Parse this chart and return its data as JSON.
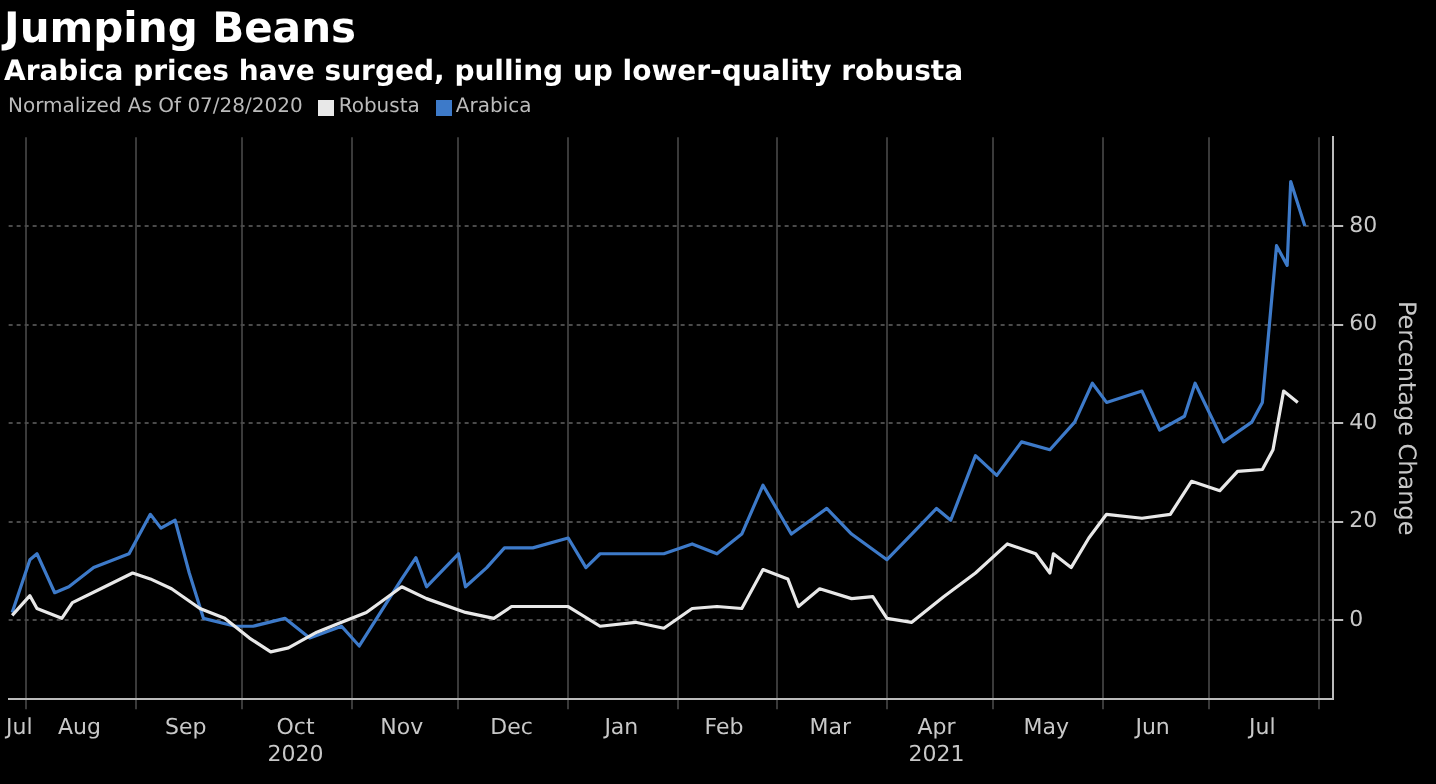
{
  "chart_data": {
    "type": "line",
    "title": "Jumping Beans",
    "subtitle": "Arabica prices have surged, pulling up lower-quality robusta",
    "legend_title": "Normalized As Of 07/28/2020",
    "ylabel": "Percentage Change",
    "legend": "top left",
    "grid": true,
    "marker": "none",
    "line_style": "solid",
    "xlim": [
      "2020-07-27",
      "2021-08-05"
    ],
    "ylim": [
      -16,
      98
    ],
    "yticks": [
      0,
      20,
      40,
      60,
      80
    ],
    "xticks": [
      {
        "value": "2020-07-30",
        "label": "Jul"
      },
      {
        "value": "2020-08-01",
        "label": null
      },
      {
        "value": "2020-08-16",
        "label": "Aug"
      },
      {
        "value": "2020-09-01",
        "label": null
      },
      {
        "value": "2020-09-15",
        "label": "Sep"
      },
      {
        "value": "2020-10-01",
        "label": null
      },
      {
        "value": "2020-10-16",
        "label": "Oct\n2020"
      },
      {
        "value": "2020-11-01",
        "label": null
      },
      {
        "value": "2020-11-15",
        "label": "Nov"
      },
      {
        "value": "2020-12-01",
        "label": null
      },
      {
        "value": "2020-12-16",
        "label": "Dec"
      },
      {
        "value": "2021-01-01",
        "label": null
      },
      {
        "value": "2021-01-16",
        "label": "Jan"
      },
      {
        "value": "2021-02-01",
        "label": null
      },
      {
        "value": "2021-02-14",
        "label": "Feb"
      },
      {
        "value": "2021-03-01",
        "label": null
      },
      {
        "value": "2021-03-16",
        "label": "Mar"
      },
      {
        "value": "2021-04-01",
        "label": null
      },
      {
        "value": "2021-04-15",
        "label": "Apr\n2021"
      },
      {
        "value": "2021-05-01",
        "label": null
      },
      {
        "value": "2021-05-16",
        "label": "May"
      },
      {
        "value": "2021-06-01",
        "label": null
      },
      {
        "value": "2021-06-15",
        "label": "Jun"
      },
      {
        "value": "2021-07-01",
        "label": null
      },
      {
        "value": "2021-07-16",
        "label": "Jul"
      },
      {
        "value": "2021-08-01",
        "label": null
      }
    ],
    "series": [
      {
        "name": "Robusta",
        "color": "#e8e8e8",
        "x": [
          "2020-07-28",
          "2020-08-02",
          "2020-08-04",
          "2020-08-11",
          "2020-08-14",
          "2020-08-22",
          "2020-08-31",
          "2020-09-05",
          "2020-09-11",
          "2020-09-19",
          "2020-09-26",
          "2020-10-03",
          "2020-10-09",
          "2020-10-14",
          "2020-10-22",
          "2020-10-29",
          "2020-11-05",
          "2020-11-15",
          "2020-11-22",
          "2020-12-03",
          "2020-12-11",
          "2020-12-16",
          "2021-01-01",
          "2021-01-10",
          "2021-01-20",
          "2021-01-28",
          "2021-02-05",
          "2021-02-12",
          "2021-02-19",
          "2021-02-25",
          "2021-03-04",
          "2021-03-07",
          "2021-03-13",
          "2021-03-22",
          "2021-03-28",
          "2021-04-01",
          "2021-04-08",
          "2021-04-17",
          "2021-04-26",
          "2021-05-05",
          "2021-05-13",
          "2021-05-17",
          "2021-05-18",
          "2021-05-23",
          "2021-05-28",
          "2021-06-02",
          "2021-06-12",
          "2021-06-20",
          "2021-06-26",
          "2021-07-04",
          "2021-07-09",
          "2021-07-16",
          "2021-07-19",
          "2021-07-22",
          "2021-07-26"
        ],
        "values": [
          1,
          5,
          2.4,
          0.4,
          3.6,
          6.4,
          9.6,
          8.4,
          6.4,
          2.4,
          0.4,
          -3.6,
          -6.4,
          -5.6,
          -2.4,
          -0.4,
          1.6,
          6.8,
          4.4,
          1.6,
          0.4,
          2.8,
          2.8,
          -1.2,
          -0.4,
          -1.6,
          2.4,
          2.8,
          2.4,
          10.3,
          8.4,
          2.8,
          6.4,
          4.4,
          4.8,
          0.4,
          -0.4,
          4.8,
          9.6,
          15.5,
          13.5,
          9.6,
          13.5,
          10.7,
          16.7,
          21.5,
          20.7,
          21.5,
          28.2,
          26.3,
          30.2,
          30.6,
          34.6,
          46.5,
          44.2
        ]
      },
      {
        "name": "Arabica",
        "color": "#3d7ac9",
        "x": [
          "2020-07-28",
          "2020-08-02",
          "2020-08-04",
          "2020-08-09",
          "2020-08-13",
          "2020-08-20",
          "2020-08-30",
          "2020-09-05",
          "2020-09-08",
          "2020-09-12",
          "2020-09-16",
          "2020-09-20",
          "2020-09-29",
          "2020-10-04",
          "2020-10-13",
          "2020-10-20",
          "2020-10-29",
          "2020-11-03",
          "2020-11-09",
          "2020-11-15",
          "2020-11-19",
          "2020-11-22",
          "2020-12-01",
          "2020-12-03",
          "2020-12-09",
          "2020-12-14",
          "2020-12-22",
          "2021-01-01",
          "2021-01-06",
          "2021-01-10",
          "2021-01-20",
          "2021-01-28",
          "2021-02-05",
          "2021-02-12",
          "2021-02-19",
          "2021-02-25",
          "2021-03-05",
          "2021-03-15",
          "2021-03-22",
          "2021-04-01",
          "2021-04-08",
          "2021-04-15",
          "2021-04-19",
          "2021-04-26",
          "2021-05-02",
          "2021-05-09",
          "2021-05-17",
          "2021-05-24",
          "2021-05-29",
          "2021-06-02",
          "2021-06-12",
          "2021-06-17",
          "2021-06-24",
          "2021-06-27",
          "2021-07-05",
          "2021-07-13",
          "2021-07-16",
          "2021-07-20",
          "2021-07-23",
          "2021-07-24",
          "2021-07-28"
        ],
        "values": [
          1.6,
          12.3,
          13.5,
          5.6,
          6.8,
          10.7,
          13.5,
          21.5,
          18.7,
          20.3,
          9.6,
          0.4,
          -1.2,
          -1.2,
          0.4,
          -3.6,
          -1.2,
          -5.2,
          1.6,
          8.4,
          12.7,
          6.8,
          13.5,
          6.8,
          10.7,
          14.7,
          14.7,
          16.7,
          10.7,
          13.5,
          13.5,
          13.5,
          15.5,
          13.5,
          17.5,
          27.4,
          17.5,
          22.7,
          17.5,
          12.3,
          17.5,
          22.7,
          20.3,
          33.4,
          29.4,
          36.2,
          34.6,
          40.2,
          48.1,
          44.2,
          46.5,
          38.6,
          41.4,
          48.1,
          36.2,
          40.2,
          44.2,
          76,
          72,
          89,
          80
        ]
      }
    ]
  }
}
